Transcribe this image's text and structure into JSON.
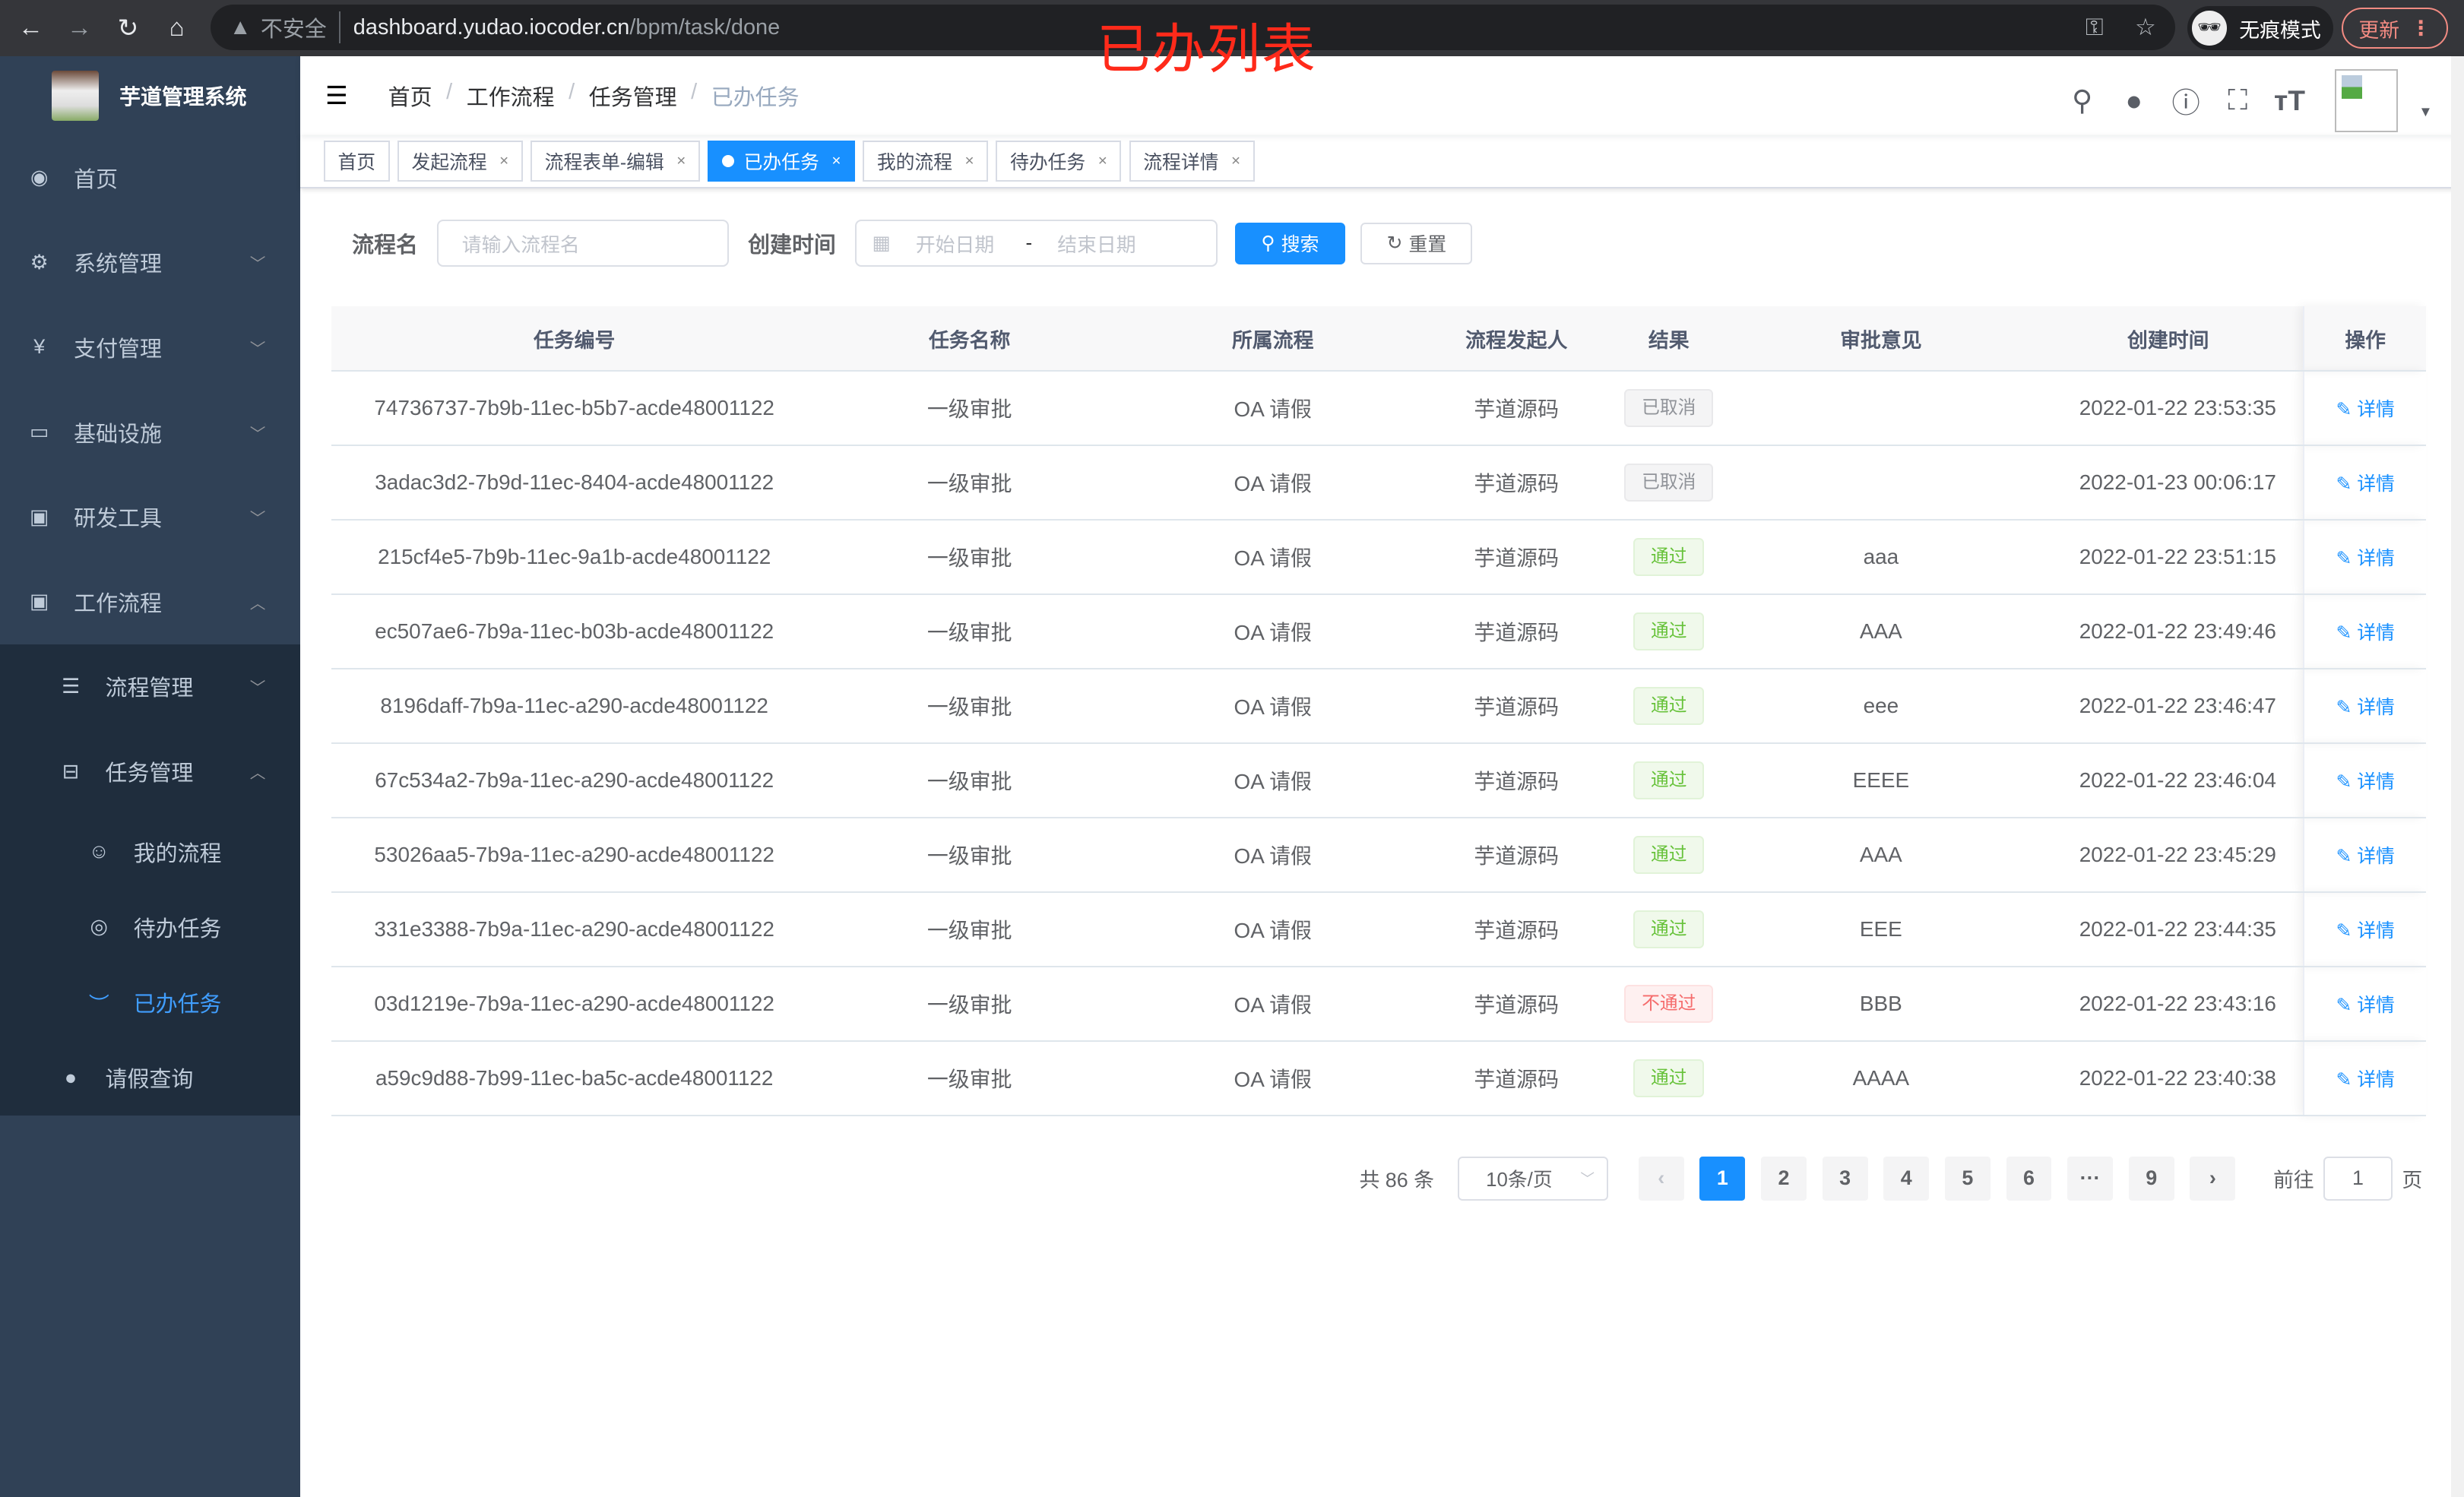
{
  "browser": {
    "insecure_label": "不安全",
    "url_host": "dashboard.yudao.iocoder.cn",
    "url_path": "/bpm/task/done",
    "incognito_label": "无痕模式",
    "update_label": "更新"
  },
  "annotation": "已办列表",
  "app": {
    "title": "芋道管理系统"
  },
  "sidebar": {
    "items": [
      {
        "label": "首页",
        "icon": "dashboard-icon"
      },
      {
        "label": "系统管理",
        "icon": "gear-icon"
      },
      {
        "label": "支付管理",
        "icon": "yen-icon"
      },
      {
        "label": "基础设施",
        "icon": "monitor-icon"
      },
      {
        "label": "研发工具",
        "icon": "toolbox-icon"
      },
      {
        "label": "工作流程",
        "icon": "toolbox-icon"
      }
    ],
    "workflow_sub": [
      {
        "label": "流程管理",
        "icon": "list-icon"
      },
      {
        "label": "任务管理",
        "icon": "tree-icon"
      },
      {
        "label": "我的流程",
        "icon": "user-group-icon"
      },
      {
        "label": "待办任务",
        "icon": "eye-icon"
      },
      {
        "label": "已办任务",
        "icon": "eye-closed-icon"
      },
      {
        "label": "请假查询",
        "icon": "user-icon"
      }
    ]
  },
  "breadcrumb": [
    "首页",
    "工作流程",
    "任务管理",
    "已办任务"
  ],
  "tags": [
    {
      "label": "首页"
    },
    {
      "label": "发起流程"
    },
    {
      "label": "流程表单-编辑"
    },
    {
      "label": "已办任务",
      "active": true
    },
    {
      "label": "我的流程"
    },
    {
      "label": "待办任务"
    },
    {
      "label": "流程详情"
    }
  ],
  "filter": {
    "name_label": "流程名",
    "name_placeholder": "请输入流程名",
    "time_label": "创建时间",
    "start_placeholder": "开始日期",
    "sep": "-",
    "end_placeholder": "结束日期",
    "search": "搜索",
    "reset": "重置"
  },
  "table": {
    "headers": [
      "任务编号",
      "任务名称",
      "所属流程",
      "流程发起人",
      "结果",
      "审批意见",
      "创建时间",
      "操作"
    ],
    "action_label": "详情",
    "rows": [
      {
        "id": "74736737-7b9b-11ec-b5b7-acde48001122",
        "name": "一级审批",
        "process": "OA 请假",
        "starter": "芋道源码",
        "result": "已取消",
        "status": "cancel",
        "comment": "",
        "time": "2022-01-22 23:53:35"
      },
      {
        "id": "3adac3d2-7b9d-11ec-8404-acde48001122",
        "name": "一级审批",
        "process": "OA 请假",
        "starter": "芋道源码",
        "result": "已取消",
        "status": "cancel",
        "comment": "",
        "time": "2022-01-23 00:06:17"
      },
      {
        "id": "215cf4e5-7b9b-11ec-9a1b-acde48001122",
        "name": "一级审批",
        "process": "OA 请假",
        "starter": "芋道源码",
        "result": "通过",
        "status": "pass",
        "comment": "aaa",
        "time": "2022-01-22 23:51:15"
      },
      {
        "id": "ec507ae6-7b9a-11ec-b03b-acde48001122",
        "name": "一级审批",
        "process": "OA 请假",
        "starter": "芋道源码",
        "result": "通过",
        "status": "pass",
        "comment": "AAA",
        "time": "2022-01-22 23:49:46"
      },
      {
        "id": "8196daff-7b9a-11ec-a290-acde48001122",
        "name": "一级审批",
        "process": "OA 请假",
        "starter": "芋道源码",
        "result": "通过",
        "status": "pass",
        "comment": "eee",
        "time": "2022-01-22 23:46:47"
      },
      {
        "id": "67c534a2-7b9a-11ec-a290-acde48001122",
        "name": "一级审批",
        "process": "OA 请假",
        "starter": "芋道源码",
        "result": "通过",
        "status": "pass",
        "comment": "EEEE",
        "time": "2022-01-22 23:46:04"
      },
      {
        "id": "53026aa5-7b9a-11ec-a290-acde48001122",
        "name": "一级审批",
        "process": "OA 请假",
        "starter": "芋道源码",
        "result": "通过",
        "status": "pass",
        "comment": "AAA",
        "time": "2022-01-22 23:45:29"
      },
      {
        "id": "331e3388-7b9a-11ec-a290-acde48001122",
        "name": "一级审批",
        "process": "OA 请假",
        "starter": "芋道源码",
        "result": "通过",
        "status": "pass",
        "comment": "EEE",
        "time": "2022-01-22 23:44:35"
      },
      {
        "id": "03d1219e-7b9a-11ec-a290-acde48001122",
        "name": "一级审批",
        "process": "OA 请假",
        "starter": "芋道源码",
        "result": "不通过",
        "status": "fail",
        "comment": "BBB",
        "time": "2022-01-22 23:43:16"
      },
      {
        "id": "a59c9d88-7b99-11ec-ba5c-acde48001122",
        "name": "一级审批",
        "process": "OA 请假",
        "starter": "芋道源码",
        "result": "通过",
        "status": "pass",
        "comment": "AAAA",
        "time": "2022-01-22 23:40:38"
      }
    ]
  },
  "pagination": {
    "total": "共 86 条",
    "page_size": "10条/页",
    "pages": [
      "1",
      "2",
      "3",
      "4",
      "5",
      "6",
      "···",
      "9"
    ],
    "current": "1",
    "goto_label": "前往",
    "goto_value": "1",
    "page_suffix": "页"
  },
  "colors": {
    "primary": "#1890ff",
    "sidebar": "#304156",
    "submenu": "#1f2d3d"
  }
}
